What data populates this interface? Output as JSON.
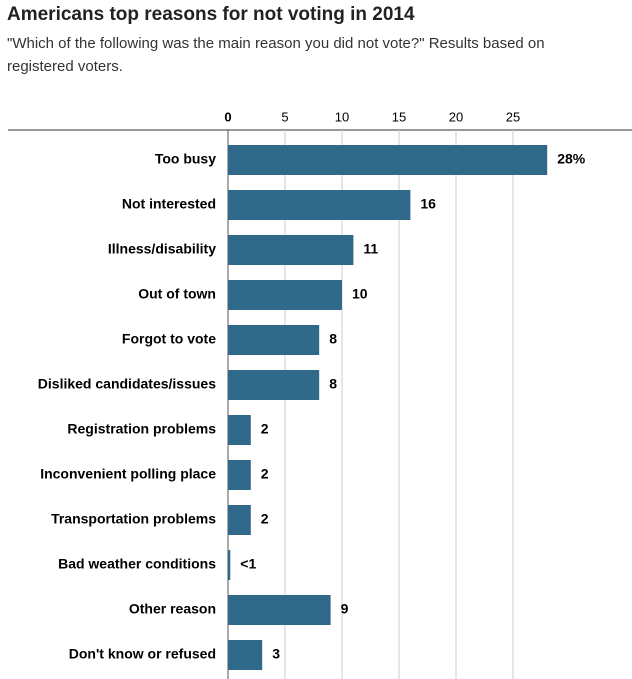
{
  "chart_data": {
    "type": "bar",
    "orientation": "horizontal",
    "title": "Americans top reasons for not voting in 2014",
    "subtitle": "\"Which of the following was the main reason you did not vote?\" Results based on registered voters.",
    "categories": [
      "Too busy",
      "Not interested",
      "Illness/disability",
      "Out of town",
      "Forgot to vote",
      "Disliked candidates/issues",
      "Registration problems",
      "Inconvenient polling place",
      "Transportation problems",
      "Bad weather conditions",
      "Other reason",
      "Don't know or refused"
    ],
    "values": [
      28,
      16,
      11,
      10,
      8,
      8,
      2,
      2,
      2,
      0.2,
      9,
      3
    ],
    "value_labels": [
      "28%",
      "16",
      "11",
      "10",
      "8",
      "8",
      "2",
      "2",
      "2",
      "<1",
      "9",
      "3"
    ],
    "color": "#30698a",
    "xlim": [
      0,
      30
    ],
    "xticks": [
      0,
      5,
      10,
      15,
      20,
      25
    ],
    "grid": true
  }
}
